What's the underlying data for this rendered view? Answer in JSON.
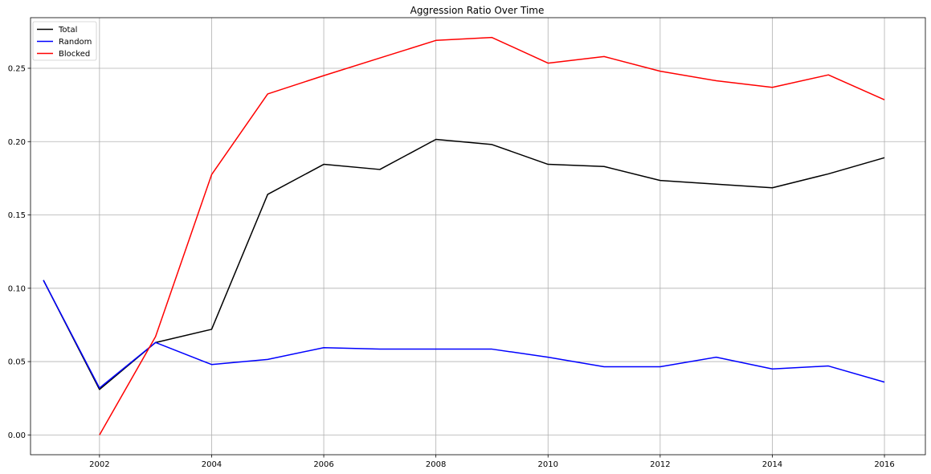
{
  "chart_data": {
    "type": "line",
    "title": "Aggression Ratio Over Time",
    "xlabel": "",
    "ylabel": "",
    "xlim": [
      2000.77,
      2016.73
    ],
    "ylim": [
      -0.0135,
      0.2845
    ],
    "xticks": [
      2002,
      2004,
      2006,
      2008,
      2010,
      2012,
      2014,
      2016
    ],
    "yticks": [
      0.0,
      0.05,
      0.1,
      0.15,
      0.2,
      0.25
    ],
    "ytick_labels": [
      "0.00",
      "0.05",
      "0.10",
      "0.15",
      "0.20",
      "0.25"
    ],
    "xtick_labels": [
      "2002",
      "2004",
      "2006",
      "2008",
      "2010",
      "2012",
      "2014",
      "2016"
    ],
    "grid": true,
    "legend_position": "top-left",
    "series": [
      {
        "name": "Total",
        "color": "#000000",
        "x": [
          2001,
          2002,
          2003,
          2004,
          2005,
          2006,
          2007,
          2008,
          2009,
          2010,
          2011,
          2012,
          2013,
          2014,
          2015,
          2016
        ],
        "y": [
          0.1055,
          0.031,
          0.063,
          0.072,
          0.164,
          0.1845,
          0.181,
          0.2015,
          0.198,
          0.1845,
          0.183,
          0.1735,
          0.171,
          0.1685,
          0.178,
          0.189
        ]
      },
      {
        "name": "Random",
        "color": "#0000ff",
        "x": [
          2001,
          2002,
          2003,
          2004,
          2005,
          2006,
          2007,
          2008,
          2009,
          2010,
          2011,
          2012,
          2013,
          2014,
          2015,
          2016
        ],
        "y": [
          0.1055,
          0.032,
          0.063,
          0.048,
          0.0515,
          0.0595,
          0.0585,
          0.0585,
          0.0585,
          0.053,
          0.0465,
          0.0465,
          0.053,
          0.045,
          0.047,
          0.036
        ]
      },
      {
        "name": "Blocked",
        "color": "#ff0000",
        "x": [
          2002,
          2003,
          2004,
          2005,
          2006,
          2007,
          2008,
          2009,
          2010,
          2011,
          2012,
          2013,
          2014,
          2015,
          2016
        ],
        "y": [
          0.0,
          0.067,
          0.1775,
          0.2325,
          0.245,
          0.257,
          0.269,
          0.271,
          0.2535,
          0.258,
          0.248,
          0.2415,
          0.237,
          0.2455,
          0.2285
        ]
      }
    ]
  }
}
